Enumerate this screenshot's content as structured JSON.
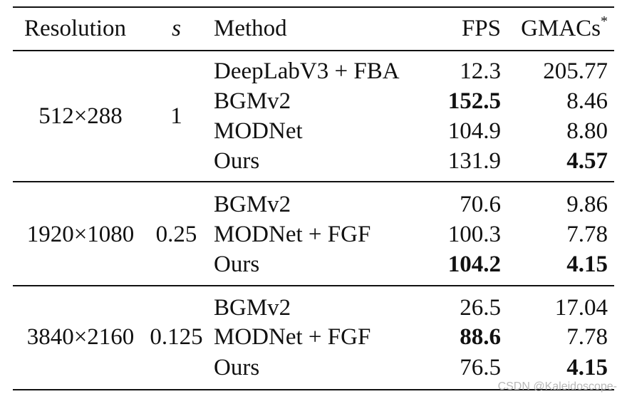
{
  "header": {
    "resolution": "Resolution",
    "s": "s",
    "method": "Method",
    "fps": "FPS",
    "gmacs": "GMACs",
    "gmacs_mark": "*"
  },
  "groups": [
    {
      "resolution": "512×288",
      "s": "1",
      "rows": [
        {
          "method": "DeepLabV3 + FBA",
          "fps": "12.3",
          "gmacs": "205.77",
          "fps_bold": false,
          "gmacs_bold": false
        },
        {
          "method": "BGMv2",
          "fps": "152.5",
          "gmacs": "8.46",
          "fps_bold": true,
          "gmacs_bold": false
        },
        {
          "method": "MODNet",
          "fps": "104.9",
          "gmacs": "8.80",
          "fps_bold": false,
          "gmacs_bold": false
        },
        {
          "method": "Ours",
          "fps": "131.9",
          "gmacs": "4.57",
          "fps_bold": false,
          "gmacs_bold": true
        }
      ]
    },
    {
      "resolution": "1920×1080",
      "s": "0.25",
      "rows": [
        {
          "method": "BGMv2",
          "fps": "70.6",
          "gmacs": "9.86",
          "fps_bold": false,
          "gmacs_bold": false
        },
        {
          "method": "MODNet + FGF",
          "fps": "100.3",
          "gmacs": "7.78",
          "fps_bold": false,
          "gmacs_bold": false
        },
        {
          "method": "Ours",
          "fps": "104.2",
          "gmacs": "4.15",
          "fps_bold": true,
          "gmacs_bold": true
        }
      ]
    },
    {
      "resolution": "3840×2160",
      "s": "0.125",
      "rows": [
        {
          "method": "BGMv2",
          "fps": "26.5",
          "gmacs": "17.04",
          "fps_bold": false,
          "gmacs_bold": false
        },
        {
          "method": "MODNet + FGF",
          "fps": "88.6",
          "gmacs": "7.78",
          "fps_bold": true,
          "gmacs_bold": false
        },
        {
          "method": "Ours",
          "fps": "76.5",
          "gmacs": "4.15",
          "fps_bold": false,
          "gmacs_bold": true
        }
      ]
    }
  ],
  "watermark": "CSDN @Kaleidoscope-"
}
